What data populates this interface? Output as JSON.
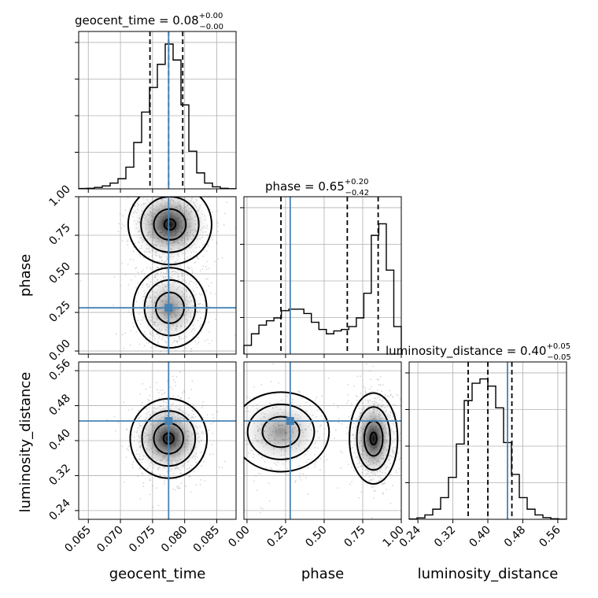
{
  "chart_data": {
    "type": "corner",
    "parameters": [
      {
        "name": "geocent_time",
        "label": "geocent_time",
        "title_prefix": "geocent_time = ",
        "median": "0.08",
        "plus": "+0.00",
        "minus": "−0.00",
        "range": [
          0.0635,
          0.088
        ],
        "ticks": [
          0.065,
          0.07,
          0.075,
          0.08,
          0.085
        ],
        "tick_labels": [
          "0.065",
          "0.070",
          "0.075",
          "0.080",
          "0.085"
        ],
        "truth": 0.0775,
        "quantiles": [
          0.0746,
          0.0775,
          0.0797
        ],
        "hist": [
          0.002,
          0.004,
          0.01,
          0.02,
          0.04,
          0.07,
          0.15,
          0.32,
          0.53,
          0.7,
          0.86,
          1.0,
          0.89,
          0.58,
          0.26,
          0.11,
          0.04,
          0.014,
          0.004,
          0.001
        ]
      },
      {
        "name": "phase",
        "label": "phase",
        "title_prefix": "phase = ",
        "median": "0.65",
        "plus": "+0.20",
        "minus": "−0.42",
        "range": [
          -0.02,
          1.0
        ],
        "ticks": [
          0.0,
          0.25,
          0.5,
          0.75,
          1.0
        ],
        "tick_labels": [
          "0.00",
          "0.25",
          "0.50",
          "0.75",
          "1.00"
        ],
        "truth": 0.28,
        "quantiles": [
          0.22,
          0.65,
          0.85
        ],
        "hist": [
          0.06,
          0.14,
          0.2,
          0.23,
          0.25,
          0.3,
          0.31,
          0.31,
          0.28,
          0.22,
          0.17,
          0.14,
          0.16,
          0.17,
          0.19,
          0.25,
          0.42,
          0.82,
          0.9,
          0.58,
          0.19
        ]
      },
      {
        "name": "luminosity_distance",
        "label": "luminosity_distance",
        "title_prefix": "luminosity_distance = ",
        "median": "0.40",
        "plus": "+0.05",
        "minus": "−0.05",
        "range": [
          0.22,
          0.58
        ],
        "ticks": [
          0.24,
          0.32,
          0.4,
          0.48,
          0.56
        ],
        "tick_labels": [
          "0.24",
          "0.32",
          "0.40",
          "0.48",
          "0.56"
        ],
        "truth": 0.445,
        "quantiles": [
          0.355,
          0.4,
          0.455
        ],
        "hist": [
          0.002,
          0.01,
          0.03,
          0.07,
          0.15,
          0.29,
          0.52,
          0.82,
          0.94,
          0.97,
          0.92,
          0.77,
          0.53,
          0.31,
          0.15,
          0.07,
          0.03,
          0.012,
          0.004,
          0.001
        ]
      }
    ],
    "grid": true,
    "quantile_style": "dashed",
    "truth_color": "#4682b4",
    "contour_color": "#000000",
    "density_cmap": "greys"
  }
}
